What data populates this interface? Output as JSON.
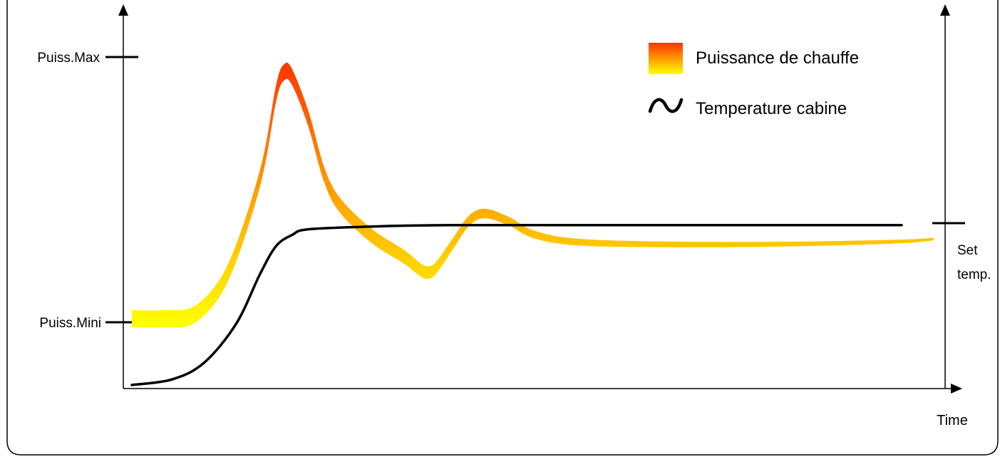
{
  "chart_data": {
    "type": "line",
    "title": "",
    "xlabel": "Time",
    "y_left_ticks": {
      "max_label": "Puiss.Max",
      "min_label": "Puiss.Mini"
    },
    "y_right_tick": {
      "label_line1": "Set",
      "label_line2": "temp."
    },
    "legend": {
      "placement": "top-right",
      "power_label": "Puissance de chauffe",
      "temperature_label": "Temperature cabine"
    },
    "series": [
      {
        "name": "Puissance de chauffe",
        "color_top": "#ff3300",
        "color_bottom": "#ffff00",
        "points": [
          [
            0,
            0
          ],
          [
            4,
            0
          ],
          [
            8,
            2
          ],
          [
            12,
            18
          ],
          [
            16,
            55
          ],
          [
            18,
            88
          ],
          [
            19,
            96
          ],
          [
            20,
            94
          ],
          [
            22,
            78
          ],
          [
            24,
            56
          ],
          [
            26,
            44
          ],
          [
            30,
            32
          ],
          [
            34,
            24
          ],
          [
            36,
            19
          ],
          [
            37,
            18
          ],
          [
            38,
            20
          ],
          [
            40,
            29
          ],
          [
            42,
            38
          ],
          [
            44,
            41
          ],
          [
            47,
            38
          ],
          [
            50,
            33
          ],
          [
            55,
            30
          ],
          [
            65,
            29
          ],
          [
            80,
            29
          ],
          [
            95,
            30
          ],
          [
            100,
            31
          ]
        ]
      },
      {
        "name": "Temperature cabine",
        "color": "#000000",
        "points": [
          [
            0,
            0
          ],
          [
            5,
            2
          ],
          [
            9,
            8
          ],
          [
            13,
            22
          ],
          [
            16,
            40
          ],
          [
            18,
            50
          ],
          [
            20,
            54
          ],
          [
            22,
            56
          ],
          [
            30,
            57
          ],
          [
            40,
            57.5
          ],
          [
            60,
            57.5
          ],
          [
            80,
            57.5
          ],
          [
            96,
            57.5
          ]
        ]
      }
    ]
  }
}
